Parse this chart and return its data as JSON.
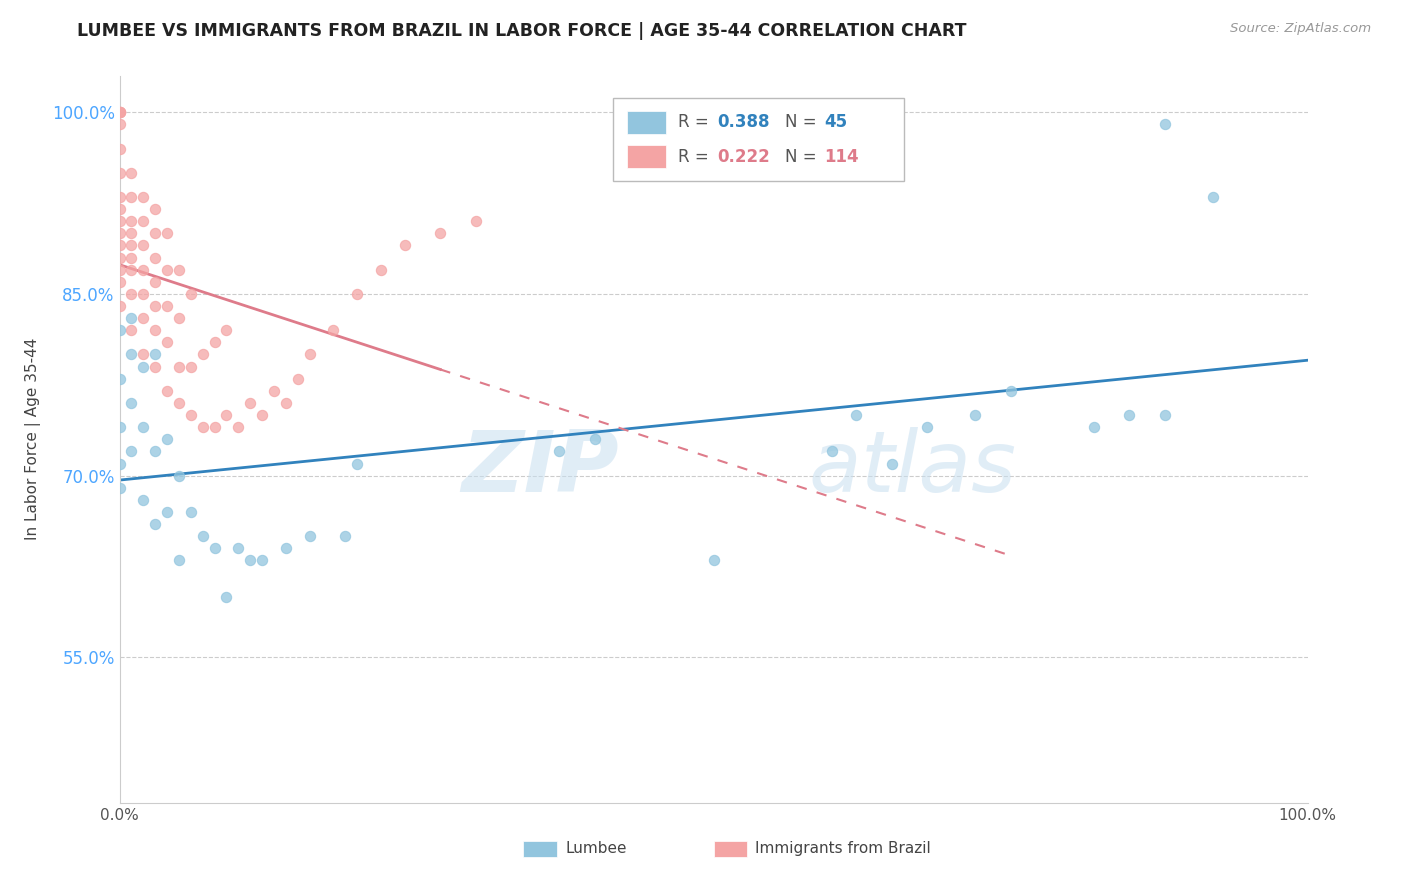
{
  "title": "LUMBEE VS IMMIGRANTS FROM BRAZIL IN LABOR FORCE | AGE 35-44 CORRELATION CHART",
  "source": "Source: ZipAtlas.com",
  "ylabel": "In Labor Force | Age 35-44",
  "watermark_zip": "ZIP",
  "watermark_atlas": "atlas",
  "xlim": [
    0.0,
    1.0
  ],
  "ylim": [
    0.43,
    1.03
  ],
  "xtick_positions": [
    0.0,
    0.2,
    0.4,
    0.6,
    0.8,
    1.0
  ],
  "xticklabels": [
    "0.0%",
    "",
    "",
    "",
    "",
    "100.0%"
  ],
  "ytick_positions": [
    0.55,
    0.7,
    0.85,
    1.0
  ],
  "yticklabels": [
    "55.0%",
    "70.0%",
    "85.0%",
    "100.0%"
  ],
  "legend_lumbee": "Lumbee",
  "legend_brazil": "Immigrants from Brazil",
  "r_lumbee": 0.388,
  "n_lumbee": 45,
  "r_brazil": 0.222,
  "n_brazil": 114,
  "lumbee_color": "#92c5de",
  "brazil_color": "#f4a4a4",
  "lumbee_line_color": "#3182bd",
  "brazil_line_color": "#de7b8a",
  "lumbee_x": [
    0.0,
    0.0,
    0.0,
    0.0,
    0.0,
    0.01,
    0.01,
    0.01,
    0.01,
    0.02,
    0.02,
    0.02,
    0.03,
    0.03,
    0.03,
    0.04,
    0.04,
    0.05,
    0.05,
    0.06,
    0.07,
    0.08,
    0.09,
    0.1,
    0.11,
    0.12,
    0.14,
    0.16,
    0.19,
    0.2,
    0.37,
    0.4,
    0.5,
    0.6,
    0.62,
    0.65,
    0.68,
    0.72,
    0.75,
    0.82,
    0.85,
    0.88,
    0.88,
    0.92
  ],
  "lumbee_y": [
    0.69,
    0.71,
    0.74,
    0.78,
    0.82,
    0.72,
    0.76,
    0.8,
    0.83,
    0.68,
    0.74,
    0.79,
    0.66,
    0.72,
    0.8,
    0.67,
    0.73,
    0.63,
    0.7,
    0.67,
    0.65,
    0.64,
    0.6,
    0.64,
    0.63,
    0.63,
    0.64,
    0.65,
    0.65,
    0.71,
    0.72,
    0.73,
    0.63,
    0.72,
    0.75,
    0.71,
    0.74,
    0.75,
    0.77,
    0.74,
    0.75,
    0.75,
    0.99,
    0.93
  ],
  "brazil_x": [
    0.0,
    0.0,
    0.0,
    0.0,
    0.0,
    0.0,
    0.0,
    0.0,
    0.0,
    0.0,
    0.0,
    0.0,
    0.0,
    0.0,
    0.0,
    0.01,
    0.01,
    0.01,
    0.01,
    0.01,
    0.01,
    0.01,
    0.01,
    0.01,
    0.02,
    0.02,
    0.02,
    0.02,
    0.02,
    0.02,
    0.02,
    0.03,
    0.03,
    0.03,
    0.03,
    0.03,
    0.03,
    0.03,
    0.04,
    0.04,
    0.04,
    0.04,
    0.04,
    0.05,
    0.05,
    0.05,
    0.05,
    0.06,
    0.06,
    0.06,
    0.07,
    0.07,
    0.08,
    0.08,
    0.09,
    0.09,
    0.1,
    0.11,
    0.12,
    0.13,
    0.14,
    0.15,
    0.16,
    0.18,
    0.2,
    0.22,
    0.24,
    0.27,
    0.3
  ],
  "brazil_y": [
    0.84,
    0.86,
    0.87,
    0.88,
    0.89,
    0.9,
    0.91,
    0.92,
    0.93,
    0.95,
    0.97,
    0.99,
    1.0,
    1.0,
    1.0,
    0.82,
    0.85,
    0.87,
    0.88,
    0.89,
    0.9,
    0.91,
    0.93,
    0.95,
    0.8,
    0.83,
    0.85,
    0.87,
    0.89,
    0.91,
    0.93,
    0.79,
    0.82,
    0.84,
    0.86,
    0.88,
    0.9,
    0.92,
    0.77,
    0.81,
    0.84,
    0.87,
    0.9,
    0.76,
    0.79,
    0.83,
    0.87,
    0.75,
    0.79,
    0.85,
    0.74,
    0.8,
    0.74,
    0.81,
    0.75,
    0.82,
    0.74,
    0.76,
    0.75,
    0.77,
    0.76,
    0.78,
    0.8,
    0.82,
    0.85,
    0.87,
    0.89,
    0.9,
    0.91
  ]
}
